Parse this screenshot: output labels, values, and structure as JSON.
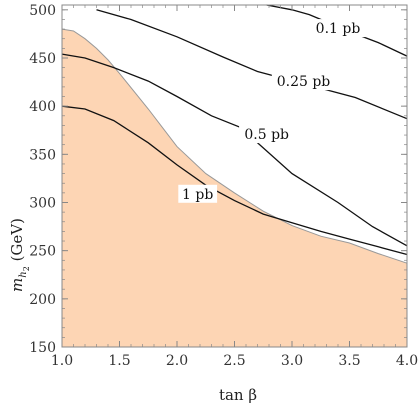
{
  "chart_data": {
    "type": "line",
    "xlabel": "tan β",
    "ylabel_main": "m",
    "ylabel_sub": "h",
    "ylabel_subsub": "2",
    "ylabel_unit": " (GeV)",
    "xlim": [
      1.0,
      4.0
    ],
    "ylim": [
      150,
      505
    ],
    "xticks": [
      1.0,
      1.5,
      2.0,
      2.5,
      3.0,
      3.5,
      4.0
    ],
    "xtick_labels": [
      "1.0",
      "1.5",
      "2.0",
      "2.5",
      "3.0",
      "3.5",
      "4.0"
    ],
    "yticks": [
      150,
      200,
      250,
      300,
      350,
      400,
      450,
      500
    ],
    "ytick_labels": [
      "150",
      "200",
      "250",
      "300",
      "350",
      "400",
      "450",
      "500"
    ],
    "excluded_region": {
      "fill_color": "#fdd5b4",
      "edge_color": "#999999",
      "boundary": [
        {
          "x": 1.0,
          "y": 480
        },
        {
          "x": 1.1,
          "y": 478
        },
        {
          "x": 1.2,
          "y": 470
        },
        {
          "x": 1.3,
          "y": 460
        },
        {
          "x": 1.4,
          "y": 448
        },
        {
          "x": 1.5,
          "y": 434
        },
        {
          "x": 1.75,
          "y": 397
        },
        {
          "x": 2.0,
          "y": 358
        },
        {
          "x": 2.25,
          "y": 330
        },
        {
          "x": 2.5,
          "y": 310
        },
        {
          "x": 2.75,
          "y": 291
        },
        {
          "x": 3.0,
          "y": 276
        },
        {
          "x": 3.25,
          "y": 265
        },
        {
          "x": 3.5,
          "y": 258
        },
        {
          "x": 3.75,
          "y": 247
        },
        {
          "x": 4.0,
          "y": 237
        }
      ]
    },
    "series": [
      {
        "name": "0.1 pb",
        "label_position": {
          "x": 3.4,
          "y": 480
        },
        "points": [
          {
            "x": 2.78,
            "y": 505
          },
          {
            "x": 3.0,
            "y": 500
          },
          {
            "x": 3.15,
            "y": 495
          },
          {
            "x": 3.55,
            "y": 475
          },
          {
            "x": 3.75,
            "y": 466
          },
          {
            "x": 4.0,
            "y": 452
          }
        ]
      },
      {
        "name": "0.25 pb",
        "label_position": {
          "x": 3.1,
          "y": 425
        },
        "points": [
          {
            "x": 1.3,
            "y": 500
          },
          {
            "x": 1.6,
            "y": 490
          },
          {
            "x": 2.0,
            "y": 472
          },
          {
            "x": 2.4,
            "y": 451
          },
          {
            "x": 2.7,
            "y": 436
          },
          {
            "x": 3.55,
            "y": 409
          },
          {
            "x": 4.0,
            "y": 387
          }
        ]
      },
      {
        "name": "0.5 pb",
        "label_position": {
          "x": 2.78,
          "y": 370
        },
        "points": [
          {
            "x": 1.0,
            "y": 454
          },
          {
            "x": 1.2,
            "y": 450
          },
          {
            "x": 1.45,
            "y": 440
          },
          {
            "x": 1.75,
            "y": 426
          },
          {
            "x": 2.0,
            "y": 410
          },
          {
            "x": 2.3,
            "y": 390
          },
          {
            "x": 2.55,
            "y": 378
          },
          {
            "x": 3.0,
            "y": 330
          },
          {
            "x": 3.4,
            "y": 300
          },
          {
            "x": 3.7,
            "y": 275
          },
          {
            "x": 4.0,
            "y": 255
          }
        ]
      },
      {
        "name": "1 pb",
        "label_position": {
          "x": 2.18,
          "y": 308
        },
        "points": [
          {
            "x": 1.0,
            "y": 400
          },
          {
            "x": 1.2,
            "y": 397
          },
          {
            "x": 1.45,
            "y": 385
          },
          {
            "x": 1.75,
            "y": 362
          },
          {
            "x": 2.0,
            "y": 339
          },
          {
            "x": 2.25,
            "y": 318
          },
          {
            "x": 2.5,
            "y": 302
          },
          {
            "x": 2.75,
            "y": 288
          },
          {
            "x": 3.0,
            "y": 279
          },
          {
            "x": 3.25,
            "y": 270
          },
          {
            "x": 3.5,
            "y": 262
          },
          {
            "x": 3.75,
            "y": 254
          },
          {
            "x": 4.0,
            "y": 246
          }
        ]
      }
    ],
    "grid": false,
    "legend": "none",
    "colors": {
      "curve": "#111111",
      "axes": "#888888",
      "label_bg": "#ffffff"
    }
  }
}
